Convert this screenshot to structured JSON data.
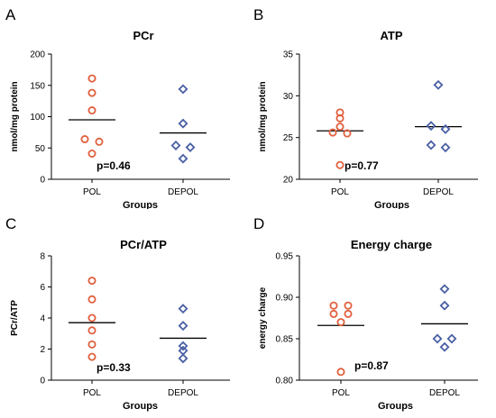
{
  "chart_data": [
    {
      "type": "scatter",
      "panel_letter": "A",
      "title": "PCr",
      "xlabel": "Groups",
      "ylabel": "nmol/mg protein",
      "categories": [
        "POL",
        "DEPOL"
      ],
      "ylim": [
        0,
        200
      ],
      "yticks": [
        0,
        50,
        100,
        150,
        200
      ],
      "series": [
        {
          "category": "POL",
          "marker": "circle",
          "color": "#e0603e",
          "values": [
            161,
            138,
            110,
            64,
            60,
            41
          ],
          "mean": 95
        },
        {
          "category": "DEPOL",
          "marker": "diamond",
          "color": "#4a5fa5",
          "values": [
            144,
            89,
            54,
            51,
            33
          ],
          "mean": 74
        }
      ],
      "annotation": "p=0.46"
    },
    {
      "type": "scatter",
      "panel_letter": "B",
      "title": "ATP",
      "xlabel": "Groups",
      "ylabel": "nmol/mg protein",
      "categories": [
        "POL",
        "DEPOL"
      ],
      "ylim": [
        20,
        35
      ],
      "yticks": [
        20,
        25,
        30,
        35
      ],
      "series": [
        {
          "category": "POL",
          "marker": "circle",
          "color": "#e0603e",
          "values": [
            28.0,
            27.3,
            26.3,
            25.6,
            25.5,
            21.7
          ],
          "mean": 25.8
        },
        {
          "category": "DEPOL",
          "marker": "diamond",
          "color": "#4a5fa5",
          "values": [
            31.3,
            26.4,
            26.0,
            24.1,
            23.8
          ],
          "mean": 26.3
        }
      ],
      "annotation": "p=0.77"
    },
    {
      "type": "scatter",
      "panel_letter": "C",
      "title": "PCr/ATP",
      "xlabel": "Groups",
      "ylabel": "PCr/ATP",
      "categories": [
        "POL",
        "DEPOL"
      ],
      "ylim": [
        0,
        8
      ],
      "yticks": [
        0,
        2,
        4,
        6,
        8
      ],
      "series": [
        {
          "category": "POL",
          "marker": "circle",
          "color": "#e0603e",
          "values": [
            6.4,
            5.2,
            4.0,
            3.2,
            2.3,
            1.5
          ],
          "mean": 3.7
        },
        {
          "category": "DEPOL",
          "marker": "diamond",
          "color": "#4a5fa5",
          "values": [
            4.6,
            3.5,
            2.2,
            1.9,
            1.4
          ],
          "mean": 2.7
        }
      ],
      "annotation": "p=0.33"
    },
    {
      "type": "scatter",
      "panel_letter": "D",
      "title": "Energy charge",
      "xlabel": "Groups",
      "ylabel": "energy charge",
      "categories": [
        "POL",
        "DEPOL"
      ],
      "ylim": [
        0.8,
        0.95
      ],
      "yticks": [
        "0.80",
        "0.85",
        "0.90",
        "0.95"
      ],
      "series": [
        {
          "category": "POL",
          "marker": "circle",
          "color": "#e0603e",
          "values": [
            0.89,
            0.89,
            0.88,
            0.88,
            0.87,
            0.81
          ],
          "mean": 0.866
        },
        {
          "category": "DEPOL",
          "marker": "diamond",
          "color": "#4a5fa5",
          "values": [
            0.91,
            0.89,
            0.85,
            0.85,
            0.84
          ],
          "mean": 0.868
        }
      ],
      "annotation": "p=0.87"
    }
  ]
}
